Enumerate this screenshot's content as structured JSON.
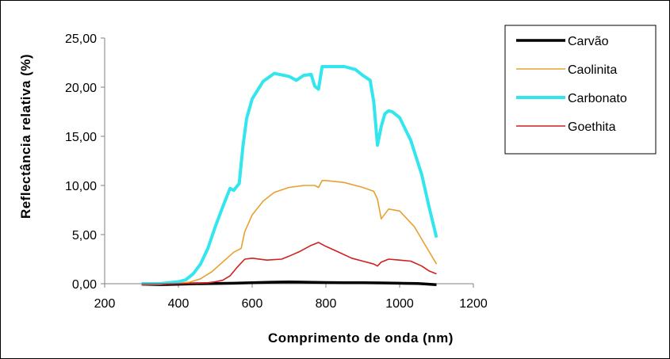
{
  "chart_data": {
    "type": "line",
    "title": "",
    "xlabel": "Comprimento de onda (nm)",
    "ylabel": "Reflectância relativa (%)",
    "xlim": [
      200,
      1200
    ],
    "ylim": [
      0,
      25
    ],
    "x_ticks": [
      "200",
      "400",
      "600",
      "800",
      "1000",
      "1200"
    ],
    "y_ticks": [
      "0,00",
      "5,00",
      "10,00",
      "15,00",
      "20,00",
      "25,00"
    ],
    "grid": false,
    "legend_position": "top-right",
    "series": [
      {
        "name": "Carvão",
        "color": "#000000",
        "x": [
          300,
          350,
          400,
          450,
          500,
          550,
          600,
          650,
          700,
          750,
          800,
          850,
          900,
          950,
          1000,
          1050,
          1100
        ],
        "values": [
          -0.05,
          -0.1,
          -0.05,
          0.0,
          0.02,
          0.05,
          0.1,
          0.15,
          0.18,
          0.15,
          0.12,
          0.1,
          0.1,
          0.08,
          0.05,
          0.02,
          -0.1
        ]
      },
      {
        "name": "Caolinita",
        "color": "#e8a030",
        "x": [
          300,
          350,
          400,
          430,
          460,
          490,
          520,
          550,
          570,
          580,
          600,
          630,
          660,
          700,
          740,
          770,
          780,
          790,
          800,
          850,
          900,
          930,
          940,
          950,
          970,
          1000,
          1040,
          1070,
          1100
        ],
        "values": [
          0.0,
          0.0,
          0.05,
          0.15,
          0.5,
          1.2,
          2.2,
          3.2,
          3.6,
          5.3,
          7.0,
          8.4,
          9.3,
          9.8,
          10.0,
          10.0,
          9.8,
          10.5,
          10.5,
          10.3,
          9.8,
          9.4,
          8.6,
          6.6,
          7.6,
          7.4,
          5.8,
          3.9,
          2.0
        ]
      },
      {
        "name": "Carbonato",
        "color": "#33e6ee",
        "x": [
          300,
          350,
          400,
          420,
          440,
          460,
          480,
          500,
          520,
          540,
          550,
          565,
          575,
          585,
          600,
          630,
          660,
          700,
          720,
          740,
          760,
          770,
          780,
          790,
          800,
          850,
          880,
          900,
          920,
          930,
          940,
          950,
          960,
          970,
          980,
          1000,
          1030,
          1060,
          1080,
          1100
        ],
        "values": [
          0.0,
          0.0,
          0.2,
          0.4,
          1.0,
          2.0,
          3.6,
          5.8,
          7.8,
          9.7,
          9.5,
          10.2,
          14.0,
          16.8,
          18.8,
          20.6,
          21.4,
          21.1,
          20.7,
          21.2,
          21.3,
          20.1,
          19.8,
          22.1,
          22.1,
          22.1,
          21.8,
          21.2,
          20.7,
          18.5,
          14.1,
          16.0,
          17.3,
          17.6,
          17.5,
          16.9,
          14.6,
          11.1,
          7.8,
          4.7
        ]
      },
      {
        "name": "Goethita",
        "color": "#d02020",
        "x": [
          300,
          350,
          400,
          450,
          480,
          500,
          520,
          540,
          560,
          580,
          600,
          640,
          680,
          700,
          730,
          760,
          780,
          800,
          830,
          870,
          900,
          930,
          940,
          950,
          970,
          1000,
          1030,
          1060,
          1080,
          1100
        ],
        "values": [
          -0.05,
          -0.05,
          0.0,
          0.05,
          0.1,
          0.2,
          0.35,
          0.8,
          1.7,
          2.5,
          2.6,
          2.4,
          2.5,
          2.8,
          3.3,
          3.9,
          4.2,
          3.8,
          3.3,
          2.6,
          2.3,
          2.0,
          1.8,
          2.2,
          2.5,
          2.4,
          2.3,
          1.8,
          1.3,
          1.0
        ]
      }
    ]
  }
}
